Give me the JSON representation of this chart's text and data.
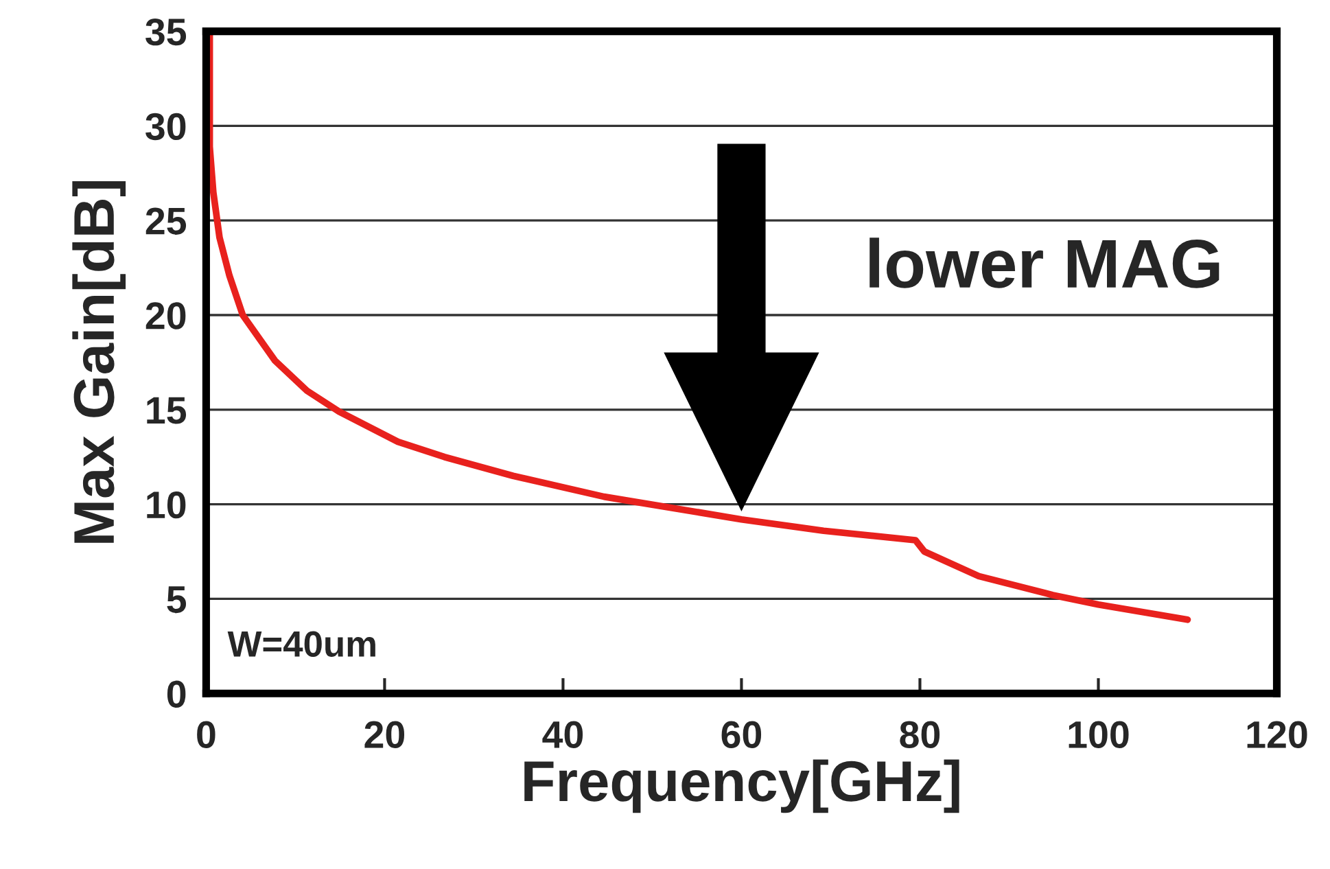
{
  "chart_data": {
    "type": "line",
    "xlabel": "Frequency[GHz]",
    "ylabel": "Max Gain[dB]",
    "xlim": [
      0,
      120
    ],
    "xticks": [
      0,
      20,
      40,
      60,
      80,
      100,
      120
    ],
    "ylim": [
      0,
      35
    ],
    "yticks": [
      0,
      5,
      10,
      15,
      20,
      25,
      30,
      35
    ],
    "grid": "y",
    "marker": "none",
    "line_style": "solid",
    "annotations": [
      "lower MAG",
      "W=40um"
    ],
    "series": [
      {
        "color": "#e8211d",
        "x": [
          0.4,
          0.4,
          0.8,
          1.5,
          2.6,
          4.1,
          7.7,
          11.3,
          14.9,
          21.5,
          26.7,
          34.4,
          44.6,
          60,
          69.2,
          79.5,
          80.5,
          86.6,
          94.9,
          100,
          110
        ],
        "values": [
          35,
          28.9,
          26.5,
          24.1,
          22.1,
          20.0,
          17.6,
          16.0,
          14.9,
          13.3,
          12.5,
          11.5,
          10.4,
          9.2,
          8.6,
          8.1,
          7.5,
          6.2,
          5.2,
          4.7,
          3.9
        ]
      }
    ]
  }
}
